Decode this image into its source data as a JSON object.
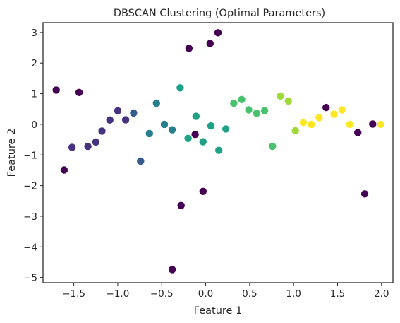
{
  "chart_data": {
    "type": "scatter",
    "title": "DBSCAN Clustering (Optimal Parameters)",
    "xlabel": "Feature 1",
    "ylabel": "Feature 2",
    "xlim": [
      -1.85,
      2.13
    ],
    "ylim": [
      -5.17,
      3.32
    ],
    "grid": false,
    "legend": "none",
    "xticks": [
      -1.5,
      -1.0,
      -0.5,
      0.0,
      0.5,
      1.0,
      1.5,
      2.0
    ],
    "xtick_labels": [
      "−1.5",
      "−1.0",
      "−0.5",
      "0.0",
      "0.5",
      "1.0",
      "1.5",
      "2.0"
    ],
    "yticks": [
      3,
      2,
      1,
      0,
      -1,
      -2,
      -3,
      -4,
      -5
    ],
    "ytick_labels": [
      "3",
      "2",
      "1",
      "0",
      "−1",
      "−2",
      "−3",
      "−4",
      "−5"
    ],
    "colors": {
      "noise": "#440154",
      "c0": "#46327e",
      "c1": "#365c8d",
      "c2": "#277f8e",
      "c3": "#1fa187",
      "c4": "#4ac16d",
      "c5": "#a0da39",
      "c6": "#fde725"
    },
    "points": [
      {
        "x": -1.7,
        "y": 1.12,
        "cluster": "noise"
      },
      {
        "x": -1.44,
        "y": 1.04,
        "cluster": "noise"
      },
      {
        "x": -1.61,
        "y": -1.49,
        "cluster": "noise"
      },
      {
        "x": -0.19,
        "y": 2.48,
        "cluster": "noise"
      },
      {
        "x": 0.05,
        "y": 2.64,
        "cluster": "noise"
      },
      {
        "x": 0.14,
        "y": 2.99,
        "cluster": "noise"
      },
      {
        "x": -0.12,
        "y": -0.33,
        "cluster": "noise"
      },
      {
        "x": -0.03,
        "y": -2.19,
        "cluster": "noise"
      },
      {
        "x": -0.28,
        "y": -2.65,
        "cluster": "noise"
      },
      {
        "x": -0.38,
        "y": -4.74,
        "cluster": "noise"
      },
      {
        "x": 1.37,
        "y": 0.55,
        "cluster": "noise"
      },
      {
        "x": 1.73,
        "y": -0.27,
        "cluster": "noise"
      },
      {
        "x": 1.81,
        "y": -2.27,
        "cluster": "noise"
      },
      {
        "x": 1.9,
        "y": 0.01,
        "cluster": "noise"
      },
      {
        "x": -1.52,
        "y": -0.75,
        "cluster": "c0"
      },
      {
        "x": -1.34,
        "y": -0.72,
        "cluster": "c0"
      },
      {
        "x": -1.25,
        "y": -0.58,
        "cluster": "c0"
      },
      {
        "x": -1.18,
        "y": -0.22,
        "cluster": "c0"
      },
      {
        "x": -1.09,
        "y": 0.14,
        "cluster": "c0"
      },
      {
        "x": -1.0,
        "y": 0.44,
        "cluster": "c0"
      },
      {
        "x": -0.91,
        "y": 0.15,
        "cluster": "c0"
      },
      {
        "x": -0.82,
        "y": 0.37,
        "cluster": "c1"
      },
      {
        "x": -0.74,
        "y": -1.2,
        "cluster": "c1"
      },
      {
        "x": -0.64,
        "y": -0.3,
        "cluster": "c2"
      },
      {
        "x": -0.56,
        "y": 0.69,
        "cluster": "c2"
      },
      {
        "x": -0.47,
        "y": 0.0,
        "cluster": "c2"
      },
      {
        "x": -0.38,
        "y": -0.18,
        "cluster": "c2"
      },
      {
        "x": -0.29,
        "y": 1.19,
        "cluster": "c3"
      },
      {
        "x": -0.2,
        "y": -0.46,
        "cluster": "c3"
      },
      {
        "x": -0.11,
        "y": 0.26,
        "cluster": "c3"
      },
      {
        "x": -0.03,
        "y": -0.57,
        "cluster": "c3"
      },
      {
        "x": 0.06,
        "y": -0.05,
        "cluster": "c3"
      },
      {
        "x": 0.15,
        "y": -0.85,
        "cluster": "c3"
      },
      {
        "x": 0.23,
        "y": -0.15,
        "cluster": "c3"
      },
      {
        "x": 0.32,
        "y": 0.69,
        "cluster": "c4"
      },
      {
        "x": 0.41,
        "y": 0.81,
        "cluster": "c4"
      },
      {
        "x": 0.49,
        "y": 0.47,
        "cluster": "c4"
      },
      {
        "x": 0.58,
        "y": 0.36,
        "cluster": "c4"
      },
      {
        "x": 0.67,
        "y": 0.44,
        "cluster": "c4"
      },
      {
        "x": 0.76,
        "y": -0.72,
        "cluster": "c4"
      },
      {
        "x": 0.85,
        "y": 0.92,
        "cluster": "c5"
      },
      {
        "x": 0.94,
        "y": 0.76,
        "cluster": "c5"
      },
      {
        "x": 1.02,
        "y": -0.21,
        "cluster": "c5"
      },
      {
        "x": 1.11,
        "y": 0.06,
        "cluster": "c6"
      },
      {
        "x": 1.2,
        "y": 0.0,
        "cluster": "c6"
      },
      {
        "x": 1.29,
        "y": 0.22,
        "cluster": "c6"
      },
      {
        "x": 1.46,
        "y": 0.33,
        "cluster": "c6"
      },
      {
        "x": 1.55,
        "y": 0.47,
        "cluster": "c6"
      },
      {
        "x": 1.64,
        "y": 0.0,
        "cluster": "c6"
      },
      {
        "x": 1.99,
        "y": 0.0,
        "cluster": "c6"
      }
    ]
  }
}
